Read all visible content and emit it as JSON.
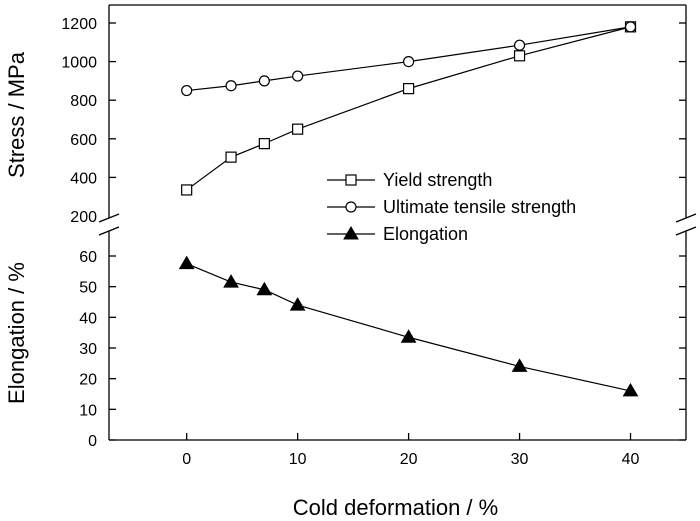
{
  "chart_data": {
    "type": "line",
    "x": [
      0,
      4,
      7,
      10,
      20,
      30,
      40
    ],
    "xlabel": "Cold deformation / %",
    "xlim": [
      -7,
      45
    ],
    "xticks": [
      0,
      10,
      20,
      30,
      40
    ],
    "panels": [
      {
        "ylabel": "Stress / MPa",
        "ylim": [
          200,
          1250
        ],
        "yticks": [
          200,
          400,
          600,
          800,
          1000,
          1200
        ],
        "series": [
          {
            "name": "Yield strength",
            "marker": "open-square",
            "values": [
              335,
              505,
              575,
              650,
              860,
              1030,
              1180
            ]
          },
          {
            "name": "Ultimate tensile strength",
            "marker": "open-circle",
            "values": [
              850,
              875,
              900,
              925,
              1000,
              1085,
              1180
            ]
          }
        ]
      },
      {
        "ylabel": "Elongation / %",
        "ylim": [
          0,
          70
        ],
        "yticks": [
          0,
          10,
          20,
          30,
          40,
          50,
          60
        ],
        "series": [
          {
            "name": "Elongation",
            "marker": "filled-triangle",
            "values": [
              57.5,
              51.5,
              49,
              44,
              33.5,
              24,
              16
            ]
          }
        ]
      }
    ],
    "axis_break": true,
    "legend_position": "center-right",
    "grid": false
  }
}
